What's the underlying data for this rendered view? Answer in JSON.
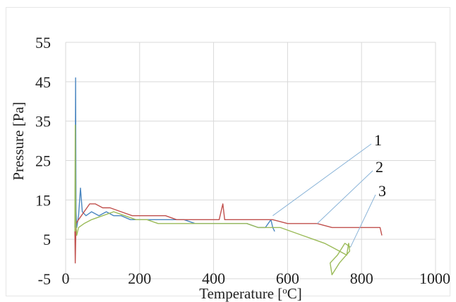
{
  "chart_data": {
    "type": "line",
    "xlabel": "Temperature [",
    "xlabel_sup": "o",
    "xlabel_end": "C]",
    "ylabel": "Pressure [Pa]",
    "xlim": [
      0,
      1000
    ],
    "ylim": [
      -5,
      55
    ],
    "x_ticks": [
      "0",
      "200",
      "400",
      "600",
      "800",
      "1000"
    ],
    "y_ticks": [
      "-5",
      "5",
      "15",
      "25",
      "35",
      "45",
      "55"
    ],
    "grid": true,
    "legend": "none",
    "series": [
      {
        "label": "1",
        "color": "#4a86c0",
        "label_point": [
          560,
          11
        ],
        "points": [
          [
            25,
            8
          ],
          [
            26,
            20
          ],
          [
            27,
            46
          ],
          [
            28,
            12
          ],
          [
            30,
            8
          ],
          [
            35,
            11
          ],
          [
            40,
            18
          ],
          [
            45,
            12
          ],
          [
            55,
            11
          ],
          [
            70,
            12
          ],
          [
            90,
            11
          ],
          [
            110,
            12
          ],
          [
            130,
            11
          ],
          [
            150,
            11
          ],
          [
            175,
            10
          ],
          [
            200,
            10
          ],
          [
            230,
            10
          ],
          [
            260,
            10
          ],
          [
            290,
            10
          ],
          [
            320,
            10
          ],
          [
            350,
            9
          ],
          [
            380,
            9
          ],
          [
            400,
            9
          ],
          [
            430,
            9
          ],
          [
            460,
            9
          ],
          [
            490,
            9
          ],
          [
            520,
            8
          ],
          [
            540,
            8
          ],
          [
            555,
            10
          ],
          [
            560,
            8
          ],
          [
            565,
            7
          ]
        ]
      },
      {
        "label": "2",
        "color": "#c0504d",
        "label_point": [
          680,
          9
        ],
        "points": [
          [
            25,
            7
          ],
          [
            26,
            -1
          ],
          [
            28,
            9
          ],
          [
            35,
            10
          ],
          [
            50,
            12
          ],
          [
            65,
            14
          ],
          [
            80,
            14
          ],
          [
            100,
            13
          ],
          [
            120,
            13
          ],
          [
            150,
            12
          ],
          [
            180,
            11
          ],
          [
            210,
            11
          ],
          [
            240,
            11
          ],
          [
            270,
            11
          ],
          [
            300,
            10
          ],
          [
            330,
            10
          ],
          [
            360,
            10
          ],
          [
            390,
            10
          ],
          [
            415,
            10
          ],
          [
            425,
            14
          ],
          [
            430,
            10
          ],
          [
            460,
            10
          ],
          [
            490,
            10
          ],
          [
            520,
            10
          ],
          [
            560,
            10
          ],
          [
            600,
            9
          ],
          [
            640,
            9
          ],
          [
            680,
            9
          ],
          [
            720,
            8
          ],
          [
            760,
            8
          ],
          [
            800,
            8
          ],
          [
            830,
            8
          ],
          [
            850,
            8
          ],
          [
            855,
            6
          ]
        ]
      },
      {
        "label": "3",
        "color": "#9bbb59",
        "label_point": [
          770,
          3
        ],
        "points": [
          [
            25,
            7
          ],
          [
            26,
            34
          ],
          [
            27,
            10
          ],
          [
            30,
            6
          ],
          [
            35,
            8
          ],
          [
            50,
            9
          ],
          [
            70,
            10
          ],
          [
            100,
            11
          ],
          [
            130,
            12
          ],
          [
            160,
            11
          ],
          [
            190,
            10
          ],
          [
            220,
            10
          ],
          [
            250,
            9
          ],
          [
            280,
            9
          ],
          [
            310,
            9
          ],
          [
            340,
            9
          ],
          [
            370,
            9
          ],
          [
            400,
            9
          ],
          [
            430,
            9
          ],
          [
            460,
            9
          ],
          [
            490,
            9
          ],
          [
            520,
            8
          ],
          [
            550,
            8
          ],
          [
            580,
            8
          ],
          [
            610,
            7
          ],
          [
            640,
            6
          ],
          [
            670,
            5
          ],
          [
            700,
            4
          ],
          [
            720,
            3
          ],
          [
            740,
            2
          ],
          [
            760,
            1
          ],
          [
            765,
            4
          ],
          [
            768,
            2
          ],
          [
            740,
            -1
          ],
          [
            720,
            -4
          ],
          [
            715,
            -1
          ],
          [
            735,
            1
          ],
          [
            755,
            4
          ],
          [
            770,
            3
          ]
        ]
      }
    ]
  }
}
